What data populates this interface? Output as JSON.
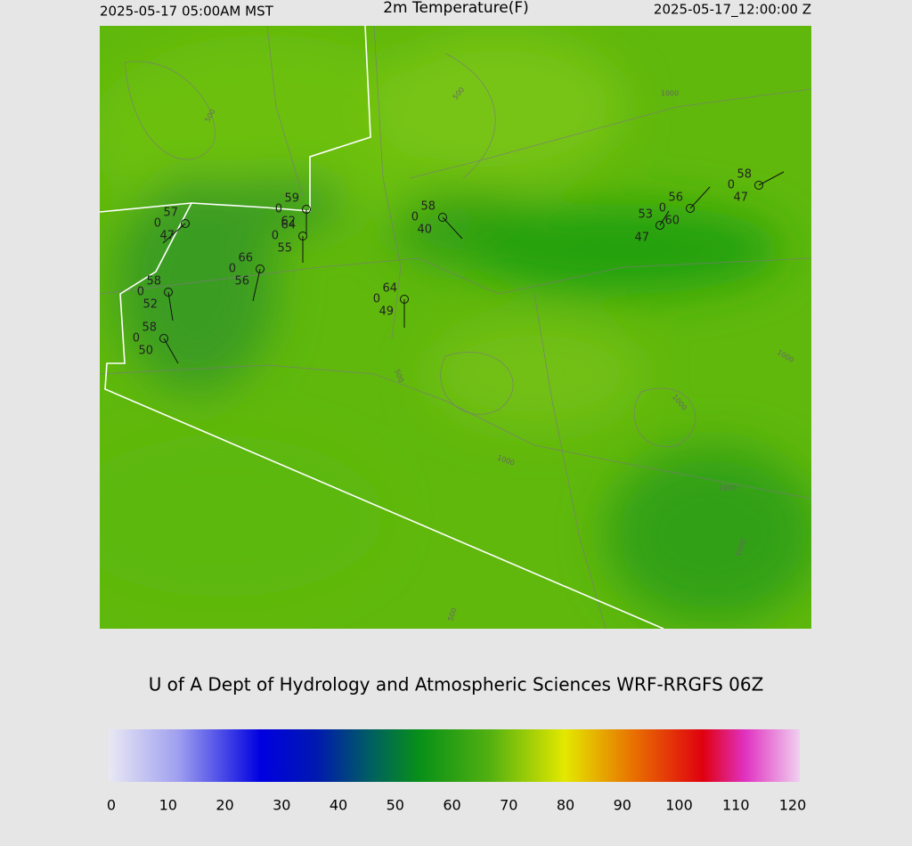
{
  "header": {
    "valid_local": "2025-05-17 05:00AM MST",
    "title": "2m Temperature(F)",
    "valid_utc": "2025-05-17_12:00:00 Z"
  },
  "credit": "U of A Dept of Hydrology and Atmospheric Sciences WRF-RRGFS 06Z",
  "stations": [
    {
      "temp": "57",
      "cover": "0",
      "dewpoint": "47"
    },
    {
      "temp": "59",
      "cover": "0",
      "dewpoint": "62"
    },
    {
      "temp": "64",
      "cover": "0",
      "dewpoint": "55"
    },
    {
      "temp": "66",
      "cover": "0",
      "dewpoint": "56"
    },
    {
      "temp": "58",
      "cover": "0",
      "dewpoint": "52"
    },
    {
      "temp": "58",
      "cover": "0",
      "dewpoint": "50"
    },
    {
      "temp": "64",
      "cover": "0",
      "dewpoint": "49"
    },
    {
      "temp": "58",
      "cover": "0",
      "dewpoint": "40"
    },
    {
      "temp": "53",
      "dewpoint": "47"
    },
    {
      "temp": "56",
      "cover": "0",
      "dewpoint": "60"
    },
    {
      "temp": "58",
      "cover": "0",
      "dewpoint": "47"
    }
  ],
  "contour_labels": [
    "500",
    "500",
    "500",
    "500",
    "1000",
    "1000",
    "1000",
    "1000",
    "1000",
    "1000"
  ],
  "colorbar": {
    "lim": [
      0,
      120
    ],
    "ticks": [
      0,
      10,
      20,
      30,
      40,
      50,
      60,
      70,
      80,
      90,
      100,
      110,
      120
    ]
  }
}
